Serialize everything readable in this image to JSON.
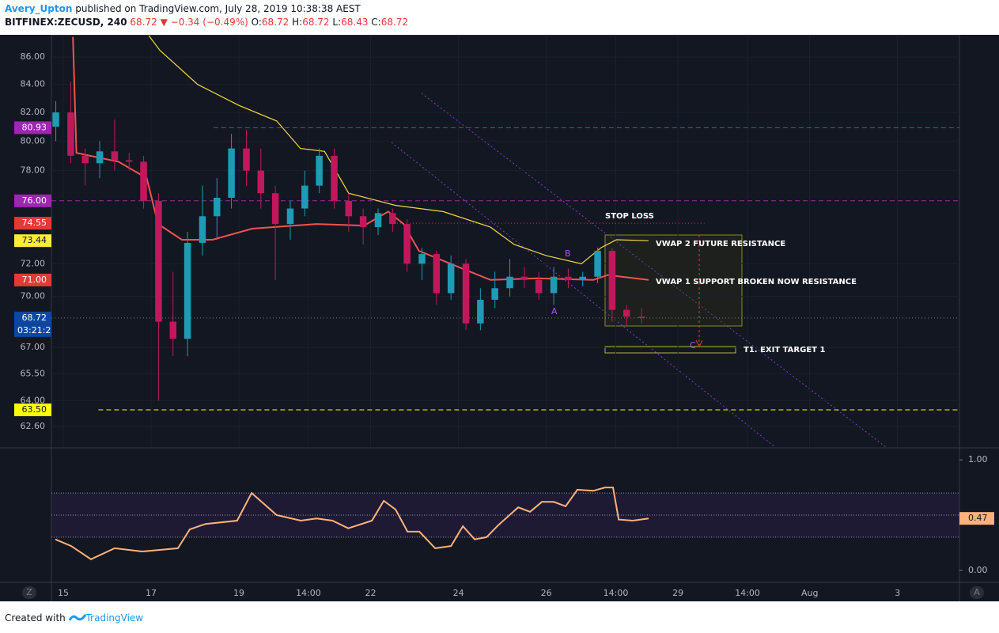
{
  "header": {
    "author": "Avery_Upton",
    "published": "published on TradingView.com, July 28, 2019 10:38:38 AEST",
    "symbol": "BITFINEX:ZECUSD, 240",
    "last": "68.72",
    "arrow": "▼",
    "change": "−0.34 (−0.49%)",
    "o_label": "O:",
    "o": "68.72",
    "h_label": "H:",
    "h": "68.72",
    "l_label": "L:",
    "l": "68.43",
    "c_label": "C:",
    "c": "68.72"
  },
  "footer": {
    "created": "Created with",
    "brand": "TradingView"
  },
  "buttons": {
    "left": "Z",
    "right": "A"
  },
  "annotations": {
    "stop": "STOP LOSS",
    "vwap2": "VWAP 2 FUTURE RESISTANCE",
    "vwap1": "VWAP 1 SUPPORT BROKEN NOW RESISTANCE",
    "target": "T1. EXIT TARGET 1",
    "a": "A",
    "b": "B",
    "c": "C"
  },
  "countdown": "03:21:2",
  "chart_data": [
    {
      "type": "candlestick",
      "log": true,
      "grid": true,
      "ylim": [
        61.5,
        87.6
      ],
      "yticks": [
        {
          "value": 86,
          "label": "86.00"
        },
        {
          "value": 84,
          "label": "84.00"
        },
        {
          "value": 82,
          "label": "82.00"
        },
        {
          "value": 80,
          "label": "80.00"
        },
        {
          "value": 78,
          "label": "78.00"
        },
        {
          "value": 72,
          "label": "72.00"
        },
        {
          "value": 70,
          "label": "70.00"
        },
        {
          "value": 67,
          "label": "67.00"
        },
        {
          "value": 65.5,
          "label": "65.50"
        },
        {
          "value": 64,
          "label": "64.00"
        },
        {
          "value": 62.6,
          "label": "62.60"
        }
      ],
      "xlim": [
        14.73,
        35.41
      ],
      "xticks": [
        15,
        17,
        19,
        {
          "value": 20.583,
          "label": "14:00"
        },
        22,
        24,
        26,
        {
          "value": 27.583,
          "label": "14:00"
        },
        29,
        {
          "value": 30.583,
          "label": "14:00"
        },
        {
          "value": 32,
          "label": "Aug"
        },
        {
          "value": 34,
          "label": "3"
        }
      ],
      "up_color": "#1e9bb5",
      "down_color": "#c2185b",
      "x": [
        14.83,
        15.17,
        15.5,
        15.83,
        16.17,
        16.5,
        16.83,
        17.17,
        17.5,
        17.83,
        18.17,
        18.5,
        18.83,
        19.17,
        19.5,
        19.83,
        20.17,
        20.5,
        20.83,
        21.17,
        21.5,
        21.83,
        22.17,
        22.5,
        22.83,
        23.17,
        23.5,
        23.83,
        24.17,
        24.5,
        24.83,
        25.17,
        25.5,
        25.83,
        26.17,
        26.5,
        26.83,
        27.17,
        27.5,
        27.83,
        28.17
      ],
      "open": [
        81,
        82,
        79,
        78.5,
        79.3,
        78.7,
        78.6,
        76,
        68.5,
        67.5,
        73.3,
        75,
        76.2,
        79.5,
        78,
        76.5,
        74.5,
        75.5,
        77,
        79,
        76,
        75,
        74.3,
        75.2,
        74.5,
        72,
        72.6,
        70.2,
        72,
        68.4,
        69.8,
        70.5,
        71.2,
        71,
        70.2,
        71.2,
        71,
        71.2,
        72.8,
        69.2,
        68.8
      ],
      "high": [
        82.8,
        84.2,
        79.5,
        80,
        81.5,
        79.2,
        79,
        76.5,
        71.5,
        74,
        77,
        77.5,
        80.5,
        80.8,
        79.5,
        77,
        76,
        78,
        79.5,
        79.5,
        76.5,
        75.5,
        75.5,
        75.5,
        74.8,
        73,
        72.8,
        72.5,
        72.3,
        70.5,
        71.5,
        72.3,
        71.8,
        71.5,
        71.8,
        71.7,
        71.5,
        73,
        73,
        69.5,
        69.3
      ],
      "low": [
        80,
        78.5,
        77,
        77.5,
        78,
        78,
        75.5,
        64,
        66.5,
        66.5,
        72.5,
        73.5,
        75.5,
        77,
        75.5,
        71,
        73.5,
        75,
        76.5,
        75.5,
        74,
        73.2,
        73.8,
        74,
        71.5,
        71,
        69.5,
        69.8,
        68,
        68,
        69.3,
        70,
        70.5,
        69.8,
        69.5,
        70.5,
        70.6,
        70.8,
        68.5,
        68.3,
        68.4
      ],
      "close": [
        82,
        79,
        78.5,
        79.3,
        78.7,
        78.6,
        76,
        68.5,
        67.5,
        73.3,
        75,
        76.2,
        79.5,
        78,
        76.5,
        74.5,
        75.5,
        77,
        79,
        76,
        75,
        74.3,
        75.2,
        74.5,
        72,
        72.6,
        70.2,
        72,
        68.4,
        69.8,
        70.5,
        71.2,
        71,
        70.2,
        71.2,
        71,
        71.2,
        72.8,
        69.2,
        68.8,
        68.72
      ],
      "lines": [
        {
          "color": "#f5d742",
          "x": [
            16.95,
            17.2,
            18.06,
            19,
            19.86,
            20.4,
            20.95,
            21.5,
            22.57,
            23.65,
            24.73,
            25.27,
            26,
            26.8,
            27.25,
            27.6,
            28.33
          ],
          "values": [
            87.6,
            86.5,
            84,
            82.5,
            81.4,
            79.5,
            79.3,
            76.5,
            75.7,
            75.3,
            74.3,
            73.2,
            72.5,
            72,
            73,
            73.5,
            73.44
          ]
        },
        {
          "color": "#ef5350",
          "x": [
            15.22,
            15.3,
            16.26,
            16.9,
            17.16,
            17.7,
            18.4,
            19.3,
            20.77,
            21.85,
            22.4,
            22.75,
            23.1,
            24,
            24.73,
            25.8,
            27.07,
            27.4,
            28.33
          ],
          "values": [
            87.5,
            79.2,
            78.6,
            77.5,
            74.5,
            73.5,
            73.5,
            74.2,
            74.5,
            74.4,
            75.3,
            74.5,
            72.8,
            71.8,
            71,
            71.1,
            71,
            71.3,
            71
          ]
        }
      ],
      "levels": [
        {
          "value": 80.93,
          "label": "80.93",
          "color": "#9c27b0",
          "text_color": "#ffffff",
          "style": "dashed",
          "from": 18.42,
          "to": 35.41
        },
        {
          "value": 76,
          "label": "76.00",
          "color": "#9c27b0",
          "text_color": "#ffffff",
          "style": "dashed",
          "from": 14.73,
          "to": 35.41
        },
        {
          "value": 74.55,
          "label": "74.55",
          "color": "#e53935",
          "text_color": "#ffffff",
          "style": "dotted",
          "from": 22.6,
          "to": 29.6
        },
        {
          "value": 73.44,
          "label": "73.44",
          "color": "#ffeb3b",
          "text_color": "#131722",
          "style": "none"
        },
        {
          "value": 71,
          "label": "71.00",
          "color": "#e53935",
          "text_color": "#ffffff",
          "style": "none"
        },
        {
          "value": 68.72,
          "label": "68.72",
          "color": "#0d47a1",
          "text_color": "#ffffff",
          "style": "dotted",
          "from": 14.73,
          "to": 35.41
        },
        {
          "value": 63.5,
          "label": "63.50",
          "color": "#ffff00",
          "text_color": "#131722",
          "style": "dashed",
          "from": 15.8,
          "to": 35.41
        }
      ]
    },
    {
      "type": "line",
      "color": "#ffb27a",
      "ylim": [
        -0.102,
        1.102
      ],
      "yticks": [
        {
          "value": 1,
          "label": "1.00"
        },
        {
          "value": 0,
          "label": "0.00"
        }
      ],
      "levels": [
        0.7,
        0.5,
        0.3
      ],
      "x": [
        14.82,
        15.18,
        15.63,
        16.17,
        16.8,
        17.61,
        17.88,
        18.24,
        18.96,
        19.29,
        19.86,
        20.41,
        20.77,
        21.13,
        21.49,
        22.03,
        22.3,
        22.57,
        22.84,
        23.11,
        23.47,
        23.83,
        24.1,
        24.37,
        24.64,
        24.91,
        25.36,
        25.63,
        25.9,
        26.17,
        26.44,
        26.71,
        27.07,
        27.34,
        27.52,
        27.65,
        27.97,
        28.33
      ],
      "values": [
        0.28,
        0.22,
        0.1,
        0.2,
        0.17,
        0.2,
        0.37,
        0.42,
        0.45,
        0.7,
        0.5,
        0.45,
        0.47,
        0.45,
        0.38,
        0.45,
        0.63,
        0.55,
        0.35,
        0.35,
        0.2,
        0.22,
        0.4,
        0.28,
        0.3,
        0.41,
        0.57,
        0.53,
        0.62,
        0.62,
        0.58,
        0.73,
        0.72,
        0.75,
        0.75,
        0.46,
        0.45,
        0.47
      ],
      "last": {
        "value": 0.47,
        "label": "0.47"
      }
    }
  ]
}
